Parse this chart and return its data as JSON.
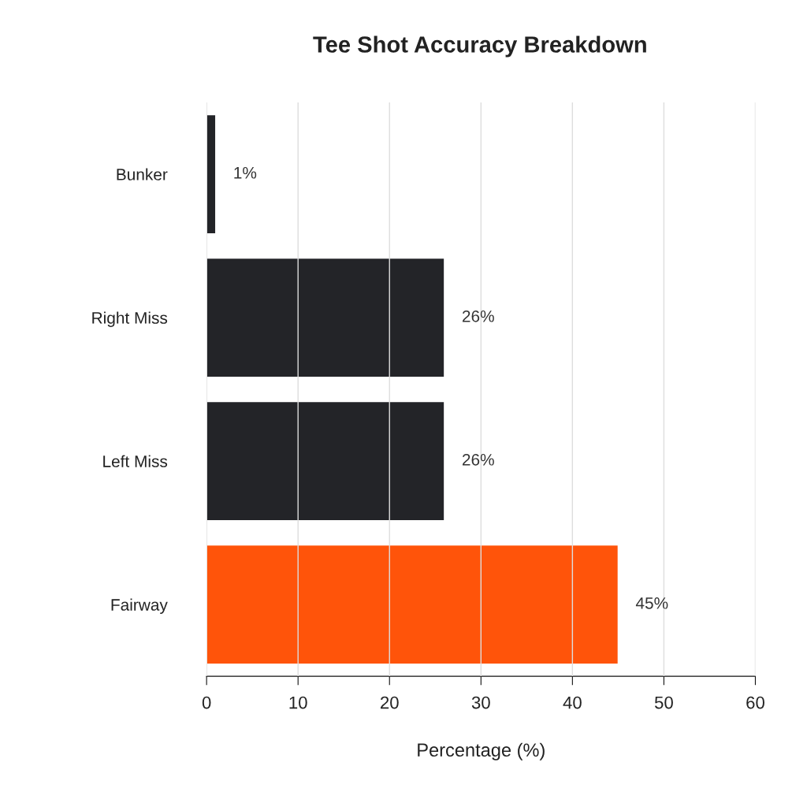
{
  "chart_data": {
    "type": "bar",
    "orientation": "horizontal",
    "title": "Tee Shot Accuracy Breakdown",
    "xlabel": "Percentage (%)",
    "categories": [
      "Bunker",
      "Right Miss",
      "Left Miss",
      "Fairway"
    ],
    "values": [
      1,
      26,
      26,
      45
    ],
    "colors": [
      "#232428",
      "#232428",
      "#232428",
      "#ff540a"
    ],
    "value_labels": [
      "1%",
      "26%",
      "26%",
      "45%"
    ],
    "xlim": [
      0,
      60
    ],
    "xticks": [
      0,
      10,
      20,
      30,
      40,
      50,
      60
    ],
    "grid": "x"
  }
}
